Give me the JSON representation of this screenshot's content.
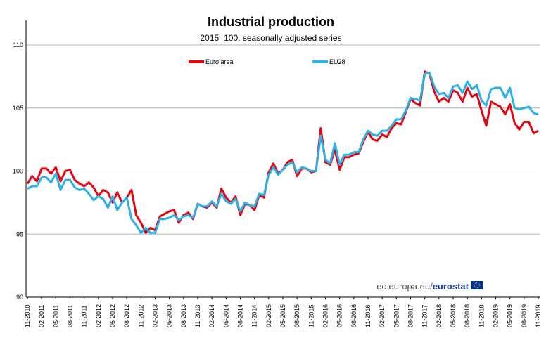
{
  "chart_data": {
    "type": "line",
    "title": "Industrial production",
    "subtitle": "2015=100, seasonally adjusted series",
    "ylim": [
      90,
      110
    ],
    "yticks": [
      "90",
      "95",
      "100",
      "105",
      "110"
    ],
    "xtick_labels": [
      "11-2010",
      "02-2011",
      "05-2011",
      "08-2011",
      "11-2011",
      "02-2012",
      "05-2012",
      "08-2012",
      "11-2012",
      "02-2013",
      "05-2013",
      "08-2013",
      "11-2013",
      "02-2014",
      "05-2014",
      "08-2014",
      "11-2014",
      "02-2015",
      "05-2015",
      "08-2015",
      "11-2015",
      "02-2016",
      "05-2016",
      "08-2016",
      "11-2016",
      "02-2017",
      "05-2017",
      "08-2017",
      "11-2017",
      "02-2018",
      "05-2018",
      "08-2018",
      "11-2018",
      "02-2019",
      "05-2019",
      "08-2019",
      "11-2019"
    ],
    "grid": true,
    "legend_position": "top",
    "series": [
      {
        "name": "Euro area",
        "color": "#e30613",
        "values": [
          99.0,
          99.6,
          99.2,
          100.2,
          100.2,
          99.8,
          100.3,
          99.2,
          100.0,
          100.1,
          99.3,
          99.0,
          98.8,
          99.1,
          98.7,
          98.0,
          98.5,
          98.3,
          97.5,
          98.3,
          97.5,
          97.9,
          98.5,
          96.5,
          95.9,
          95.1,
          95.5,
          95.3,
          96.4,
          96.6,
          96.8,
          96.9,
          95.9,
          96.5,
          96.7,
          96.2,
          97.4,
          97.2,
          97.1,
          97.5,
          97.1,
          98.6,
          97.9,
          97.5,
          98.0,
          96.5,
          97.4,
          97.3,
          96.9,
          98.1,
          97.9,
          99.9,
          100.6,
          99.8,
          100.1,
          100.7,
          100.9,
          99.6,
          100.2,
          100.2,
          99.9,
          100.0,
          103.4,
          100.7,
          100.5,
          101.7,
          100.1,
          101.1,
          101.1,
          101.3,
          101.4,
          102.3,
          103.1,
          102.5,
          102.4,
          102.9,
          102.7,
          103.4,
          103.8,
          103.7,
          104.7,
          105.7,
          105.4,
          105.2,
          107.9,
          107.7,
          106.3,
          105.5,
          105.8,
          105.5,
          106.4,
          106.2,
          105.5,
          106.6,
          105.9,
          106.1,
          104.8,
          103.6,
          105.5,
          105.3,
          105.1,
          104.5,
          105.3,
          103.8,
          103.3,
          103.9,
          103.9,
          103.0,
          103.2
        ]
      },
      {
        "name": "EU28",
        "color": "#2eb0e8",
        "values": [
          98.6,
          98.8,
          98.8,
          99.5,
          99.5,
          99.1,
          99.8,
          98.5,
          99.3,
          99.3,
          98.7,
          98.5,
          98.6,
          98.2,
          97.7,
          98.0,
          97.8,
          97.1,
          98.0,
          96.9,
          97.5,
          97.9,
          96.2,
          95.7,
          95.1,
          95.5,
          95.1,
          95.1,
          96.2,
          96.2,
          96.3,
          96.5,
          96.1,
          96.4,
          96.5,
          96.3,
          97.4,
          97.2,
          97.2,
          97.6,
          97.2,
          98.2,
          97.6,
          97.4,
          97.8,
          96.8,
          97.5,
          97.3,
          97.2,
          98.2,
          98.1,
          99.7,
          100.3,
          99.7,
          100.1,
          100.5,
          100.7,
          99.9,
          100.3,
          100.2,
          100.0,
          100.0,
          102.8,
          100.9,
          100.6,
          102.2,
          100.5,
          101.3,
          101.3,
          101.5,
          101.5,
          102.5,
          103.2,
          102.9,
          102.8,
          103.2,
          103.2,
          103.6,
          104.1,
          104.1,
          104.8,
          105.8,
          105.7,
          105.6,
          107.7,
          107.8,
          106.7,
          106.1,
          106.2,
          105.8,
          106.7,
          106.8,
          106.2,
          107.1,
          106.5,
          106.8,
          105.6,
          105.2,
          106.5,
          106.6,
          106.6,
          105.8,
          106.6,
          105.0,
          104.9,
          105.0,
          105.1,
          104.6,
          104.5
        ]
      }
    ]
  },
  "source": {
    "text": "ec.europa.eu/",
    "brand": "eurostat"
  }
}
